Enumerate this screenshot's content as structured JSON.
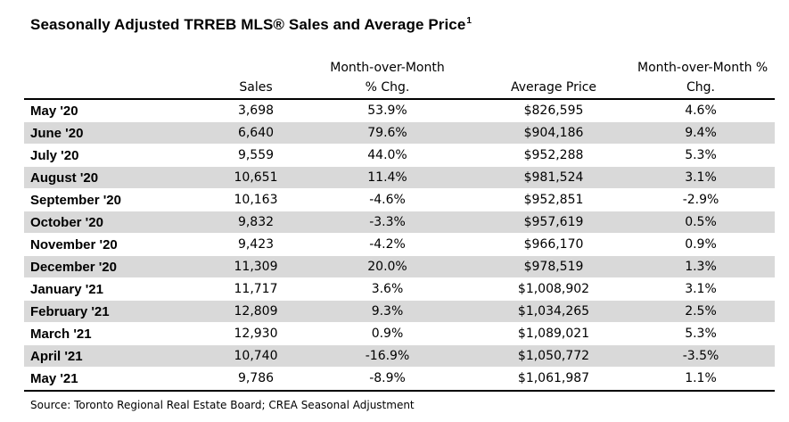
{
  "title": "Seasonally Adjusted TRREB MLS® Sales and Average Price",
  "title_footnote": "1",
  "headers": {
    "sales": "Sales",
    "mom_line1": "Month-over-Month",
    "mom_line2": "% Chg.",
    "avg_price": "Average Price",
    "price_mom_line1": "Month-over-Month %",
    "price_mom_line2": "Chg."
  },
  "rows": [
    {
      "month": "May '20",
      "sales": "3,698",
      "mom": "53.9%",
      "price": "$826,595",
      "price_mom": "4.6%"
    },
    {
      "month": "June '20",
      "sales": "6,640",
      "mom": "79.6%",
      "price": "$904,186",
      "price_mom": "9.4%"
    },
    {
      "month": "July '20",
      "sales": "9,559",
      "mom": "44.0%",
      "price": "$952,288",
      "price_mom": "5.3%"
    },
    {
      "month": "August '20",
      "sales": "10,651",
      "mom": "11.4%",
      "price": "$981,524",
      "price_mom": "3.1%"
    },
    {
      "month": "September '20",
      "sales": "10,163",
      "mom": "-4.6%",
      "price": "$952,851",
      "price_mom": "-2.9%"
    },
    {
      "month": "October '20",
      "sales": "9,832",
      "mom": "-3.3%",
      "price": "$957,619",
      "price_mom": "0.5%"
    },
    {
      "month": "November '20",
      "sales": "9,423",
      "mom": "-4.2%",
      "price": "$966,170",
      "price_mom": "0.9%"
    },
    {
      "month": "December '20",
      "sales": "11,309",
      "mom": "20.0%",
      "price": "$978,519",
      "price_mom": "1.3%"
    },
    {
      "month": "January '21",
      "sales": "11,717",
      "mom": "3.6%",
      "price": "$1,008,902",
      "price_mom": "3.1%"
    },
    {
      "month": "February '21",
      "sales": "12,809",
      "mom": "9.3%",
      "price": "$1,034,265",
      "price_mom": "2.5%"
    },
    {
      "month": "March '21",
      "sales": "12,930",
      "mom": "0.9%",
      "price": "$1,089,021",
      "price_mom": "5.3%"
    },
    {
      "month": "April '21",
      "sales": "10,740",
      "mom": "-16.9%",
      "price": "$1,050,772",
      "price_mom": "-3.5%"
    },
    {
      "month": "May '21",
      "sales": "9,786",
      "mom": "-8.9%",
      "price": "$1,061,987",
      "price_mom": "1.1%"
    }
  ],
  "source": "Source: Toronto Regional Real Estate Board; CREA Seasonal Adjustment",
  "colors": {
    "shaded_row": "#d9d9d9",
    "rule": "#000000"
  }
}
